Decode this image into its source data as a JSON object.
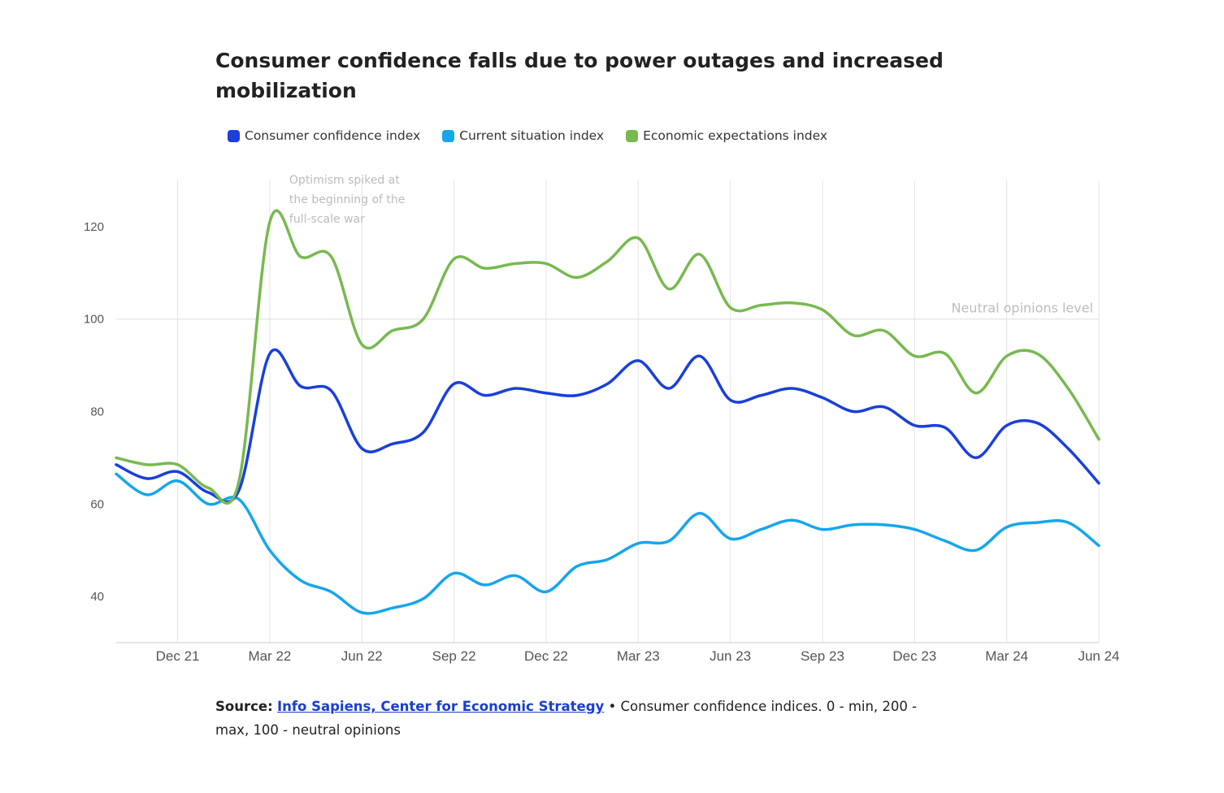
{
  "title": "Consumer confidence falls due to power outages and increased mobilization",
  "source": {
    "label": "Source:",
    "link_text": "Info Sapiens, Center for Economic Strategy",
    "separator": " • ",
    "note": "Consumer confidence indices. 0 - min, 200 - max, 100 - neutral opinions"
  },
  "chart_data": {
    "type": "line",
    "title": "Consumer confidence falls due to power outages and increased mobilization",
    "xlabel": "",
    "ylabel": "",
    "x_range": [
      "Oct 21",
      "Jun 24"
    ],
    "ylim": [
      30,
      130
    ],
    "grid": true,
    "legend_position": "top",
    "x_ticks": [
      "Dec 21",
      "Mar 22",
      "Jun 22",
      "Sep 22",
      "Dec 22",
      "Mar 23",
      "Jun 23",
      "Sep 23",
      "Dec 23",
      "Mar 24",
      "Jun 24"
    ],
    "y_ticks": [
      40,
      60,
      80,
      100,
      120
    ],
    "months": [
      "Oct 21",
      "Nov 21",
      "Dec 21",
      "Jan 22",
      "Feb 22",
      "Mar 22",
      "Apr 22",
      "May 22",
      "Jun 22",
      "Jul 22",
      "Aug 22",
      "Sep 22",
      "Oct 22",
      "Nov 22",
      "Dec 22",
      "Jan 23",
      "Feb 23",
      "Mar 23",
      "Apr 23",
      "May 23",
      "Jun 23",
      "Jul 23",
      "Aug 23",
      "Sep 23",
      "Oct 23",
      "Nov 23",
      "Dec 23",
      "Jan 24",
      "Feb 24",
      "Mar 24",
      "Apr 24",
      "May 24",
      "Jun 24"
    ],
    "series": [
      {
        "name": "Consumer confidence index",
        "color": "#1a3fdc",
        "values": [
          68.5,
          65.5,
          67,
          62.5,
          63,
          92.5,
          85.5,
          84.5,
          72,
          73,
          75.5,
          86,
          83.5,
          85,
          84,
          83.5,
          86,
          91,
          85,
          92,
          82.5,
          83.5,
          85,
          83,
          80,
          81,
          77,
          76.5,
          70,
          77,
          77.5,
          72,
          64.5
        ]
      },
      {
        "name": "Current situation index",
        "color": "#16a6ec",
        "values": [
          66.5,
          62,
          65,
          60,
          61,
          50,
          43.5,
          41,
          36.5,
          37.5,
          39.5,
          45,
          42.5,
          44.5,
          41,
          46.5,
          48,
          51.5,
          52,
          58,
          52.5,
          54.5,
          56.5,
          54.5,
          55.5,
          55.5,
          54.5,
          52,
          50,
          55,
          56,
          56,
          51
        ]
      },
      {
        "name": "Economic expectations index",
        "color": "#78b94f",
        "values": [
          70,
          68.5,
          68.5,
          63.5,
          65,
          121,
          113.5,
          113.5,
          94.5,
          97.5,
          100,
          113,
          111,
          112,
          112,
          109,
          112.5,
          117.5,
          106.5,
          114,
          102.5,
          103,
          103.5,
          102,
          96.5,
          97.5,
          92,
          92.5,
          84,
          92,
          92.5,
          85,
          74
        ]
      }
    ],
    "reference_line": {
      "value": 100,
      "label": "Neutral opinions level"
    },
    "annotation": {
      "month": "Mar 22",
      "text": [
        "Optimism spiked at",
        "the beginning of the",
        "full-scale war"
      ]
    }
  }
}
